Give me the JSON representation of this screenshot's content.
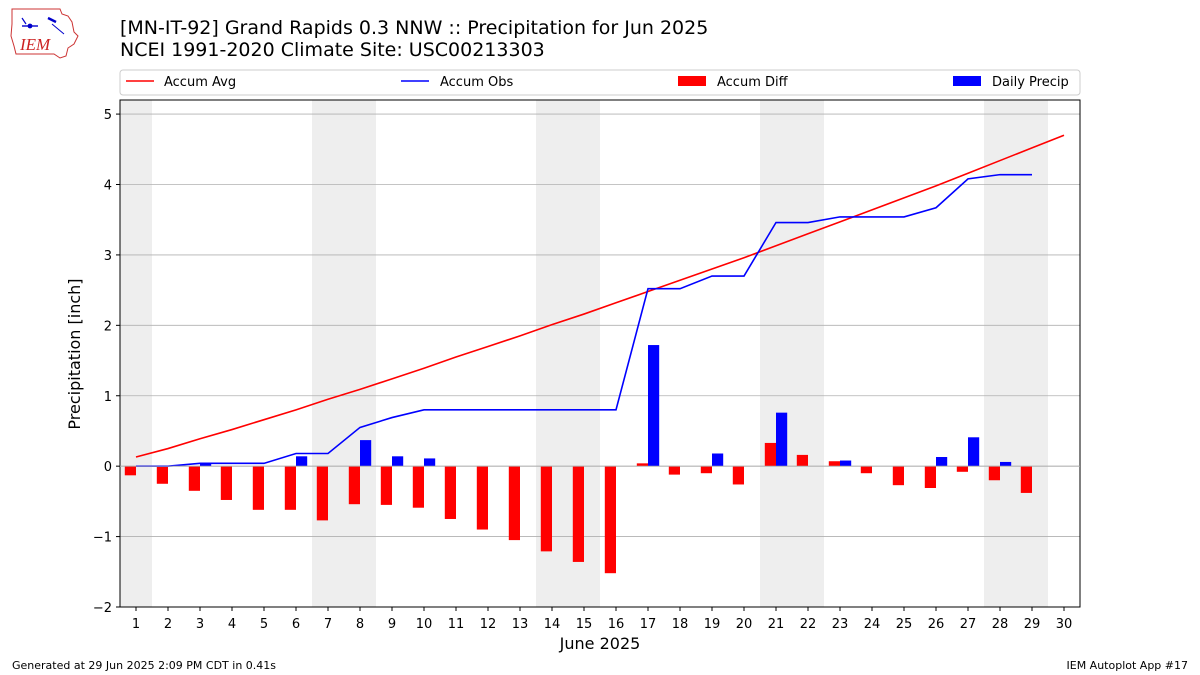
{
  "logo_text": "IEM",
  "title_line1": "[MN-IT-92] Grand Rapids 0.3 NNW :: Precipitation for Jun 2025",
  "title_line2": "NCEI 1991-2020 Climate Site: USC00213303",
  "footer_left": "Generated at 29 Jun 2025 2:09 PM CDT in 0.41s",
  "footer_right": "IEM Autoplot App #17",
  "colors": {
    "avg": "#ff0000",
    "obs": "#0000ff",
    "diff": "#ff0000",
    "daily": "#0000ff",
    "weekend": "#eeeeee",
    "grid": "#b0b0b0"
  },
  "chart_data": {
    "type": "bar",
    "xlabel": "June 2025",
    "ylabel": "Precipitation [inch]",
    "ylim": [
      -2,
      5.2
    ],
    "yticks": [
      -2,
      -1,
      0,
      1,
      2,
      3,
      4,
      5
    ],
    "ytick_labels": [
      "−2",
      "−1",
      "0",
      "1",
      "2",
      "3",
      "4",
      "5"
    ],
    "xlim": [
      0.5,
      30.5
    ],
    "days": [
      1,
      2,
      3,
      4,
      5,
      6,
      7,
      8,
      9,
      10,
      11,
      12,
      13,
      14,
      15,
      16,
      17,
      18,
      19,
      20,
      21,
      22,
      23,
      24,
      25,
      26,
      27,
      28,
      29,
      30
    ],
    "weekend_days": [
      1,
      7,
      8,
      14,
      15,
      21,
      22,
      28,
      29
    ],
    "grid": "horizontal",
    "legend_position": "top",
    "legend": [
      "Accum Avg",
      "Accum Obs",
      "Accum Diff",
      "Daily Precip"
    ],
    "series": [
      {
        "name": "Accum Avg",
        "kind": "line",
        "x": [
          1,
          2,
          3,
          4,
          5,
          6,
          7,
          8,
          9,
          10,
          11,
          12,
          13,
          14,
          15,
          16,
          17,
          18,
          19,
          20,
          21,
          22,
          23,
          24,
          25,
          26,
          27,
          28,
          29,
          30
        ],
        "values": [
          0.13,
          0.25,
          0.39,
          0.52,
          0.66,
          0.8,
          0.95,
          1.09,
          1.24,
          1.39,
          1.55,
          1.7,
          1.85,
          2.01,
          2.16,
          2.32,
          2.48,
          2.64,
          2.8,
          2.96,
          3.13,
          3.3,
          3.47,
          3.64,
          3.81,
          3.98,
          4.16,
          4.34,
          4.52,
          4.7
        ]
      },
      {
        "name": "Accum Obs",
        "kind": "line",
        "x": [
          1,
          2,
          3,
          4,
          5,
          6,
          7,
          8,
          9,
          10,
          11,
          12,
          13,
          14,
          15,
          16,
          17,
          18,
          19,
          20,
          21,
          22,
          23,
          24,
          25,
          26,
          27,
          28,
          29
        ],
        "values": [
          0.0,
          0.0,
          0.04,
          0.04,
          0.04,
          0.18,
          0.18,
          0.55,
          0.69,
          0.8,
          0.8,
          0.8,
          0.8,
          0.8,
          0.8,
          0.8,
          2.52,
          2.52,
          2.7,
          2.7,
          3.46,
          3.46,
          3.54,
          3.54,
          3.54,
          3.67,
          4.08,
          4.14,
          4.14
        ]
      },
      {
        "name": "Accum Diff",
        "kind": "bar",
        "x": [
          1,
          2,
          3,
          4,
          5,
          6,
          7,
          8,
          9,
          10,
          11,
          12,
          13,
          14,
          15,
          16,
          17,
          18,
          19,
          20,
          21,
          22,
          23,
          24,
          25,
          26,
          27,
          28,
          29
        ],
        "values": [
          -0.13,
          -0.25,
          -0.35,
          -0.48,
          -0.62,
          -0.62,
          -0.77,
          -0.54,
          -0.55,
          -0.59,
          -0.75,
          -0.9,
          -1.05,
          -1.21,
          -1.36,
          -1.52,
          0.04,
          -0.12,
          -0.1,
          -0.26,
          0.33,
          0.16,
          0.07,
          -0.1,
          -0.27,
          -0.31,
          -0.08,
          -0.2,
          -0.38
        ]
      },
      {
        "name": "Daily Precip",
        "kind": "bar",
        "x": [
          3,
          6,
          8,
          9,
          10,
          17,
          19,
          21,
          23,
          26,
          27,
          28
        ],
        "values": [
          0.04,
          0.14,
          0.37,
          0.14,
          0.11,
          1.72,
          0.18,
          0.76,
          0.08,
          0.13,
          0.41,
          0.06
        ]
      }
    ]
  }
}
